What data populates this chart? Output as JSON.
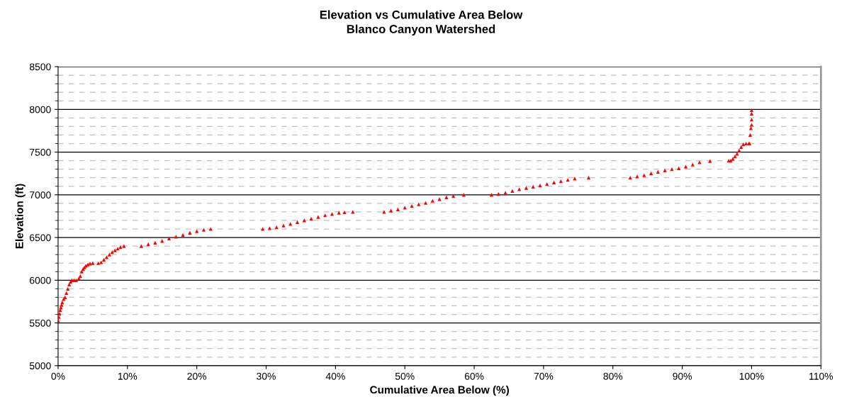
{
  "chart_data": {
    "type": "scatter",
    "title": "Elevation vs Cumulative Area Below",
    "subtitle": "Blanco Canyon Watershed",
    "xlabel": "Cumulative Area Below (%)",
    "ylabel": "Elevation (ft)",
    "series": [
      {
        "color": "#ff0000",
        "x": [
          0,
          0.1,
          0.2,
          0.3,
          0.4,
          0.5,
          0.6,
          0.8,
          1.0,
          1.2,
          1.4,
          1.6,
          1.8,
          2.0,
          2.3,
          2.6,
          3.0,
          3.2,
          3.4,
          3.6,
          3.8,
          4.0,
          4.3,
          4.6,
          5.0,
          5.8,
          6.2,
          6.6,
          7.0,
          7.4,
          7.8,
          8.2,
          8.6,
          9.0,
          9.5,
          12.0,
          13.0,
          14.0,
          15.0,
          16.0,
          17.0,
          18.0,
          19.0,
          20.0,
          21.0,
          22.0,
          29.5,
          30.5,
          31.5,
          32.5,
          33.5,
          34.5,
          35.5,
          36.5,
          37.5,
          38.5,
          39.5,
          40.5,
          41.3,
          42.5,
          47.0,
          48.0,
          49.0,
          50.0,
          51.0,
          52.0,
          53.0,
          54.0,
          55.0,
          56.0,
          57.0,
          58.5,
          62.5,
          63.5,
          64.5,
          65.5,
          66.5,
          67.5,
          68.5,
          69.5,
          70.5,
          71.5,
          72.5,
          73.5,
          74.5,
          76.5,
          82.5,
          83.5,
          84.5,
          85.5,
          86.5,
          87.5,
          88.5,
          89.5,
          90.5,
          91.5,
          92.5,
          94.0,
          96.7,
          97.0,
          97.3,
          97.6,
          97.9,
          98.2,
          98.5,
          98.8,
          99.2,
          99.6,
          99.7,
          99.8,
          99.9,
          100,
          100,
          100,
          100
        ],
        "values": [
          5530,
          5570,
          5610,
          5650,
          5680,
          5710,
          5740,
          5780,
          5800,
          5850,
          5900,
          5950,
          5980,
          6000,
          6000,
          6000,
          6020,
          6050,
          6100,
          6130,
          6150,
          6170,
          6185,
          6195,
          6200,
          6200,
          6210,
          6240,
          6270,
          6300,
          6330,
          6350,
          6370,
          6390,
          6400,
          6400,
          6420,
          6440,
          6460,
          6490,
          6510,
          6530,
          6555,
          6575,
          6590,
          6600,
          6600,
          6610,
          6620,
          6640,
          6660,
          6680,
          6700,
          6720,
          6740,
          6760,
          6775,
          6790,
          6795,
          6800,
          6800,
          6815,
          6830,
          6850,
          6870,
          6890,
          6905,
          6930,
          6950,
          6970,
          6985,
          7000,
          7000,
          7010,
          7025,
          7045,
          7065,
          7080,
          7095,
          7110,
          7125,
          7145,
          7160,
          7175,
          7190,
          7200,
          7200,
          7215,
          7230,
          7250,
          7270,
          7285,
          7300,
          7310,
          7330,
          7355,
          7380,
          7395,
          7400,
          7400,
          7420,
          7450,
          7480,
          7520,
          7560,
          7590,
          7600,
          7600,
          7600,
          7700,
          7780,
          7820,
          7880,
          7950,
          7990
        ]
      }
    ],
    "marker": "triangle",
    "xlim": [
      0,
      110
    ],
    "xticks": [
      {
        "value": 0,
        "label": "0%"
      },
      {
        "value": 10,
        "label": "10%"
      },
      {
        "value": 20,
        "label": "20%"
      },
      {
        "value": 30,
        "label": "30%"
      },
      {
        "value": 40,
        "label": "40%"
      },
      {
        "value": 50,
        "label": "50%"
      },
      {
        "value": 60,
        "label": "60%"
      },
      {
        "value": 70,
        "label": "70%"
      },
      {
        "value": 80,
        "label": "80%"
      },
      {
        "value": 90,
        "label": "90%"
      },
      {
        "value": 100,
        "label": "100%"
      },
      {
        "value": 110,
        "label": "110%"
      }
    ],
    "ylim": [
      5000,
      8500
    ],
    "yticks": [
      5000,
      5500,
      6000,
      6500,
      7000,
      7500,
      8000,
      8500
    ],
    "grid": "y"
  }
}
